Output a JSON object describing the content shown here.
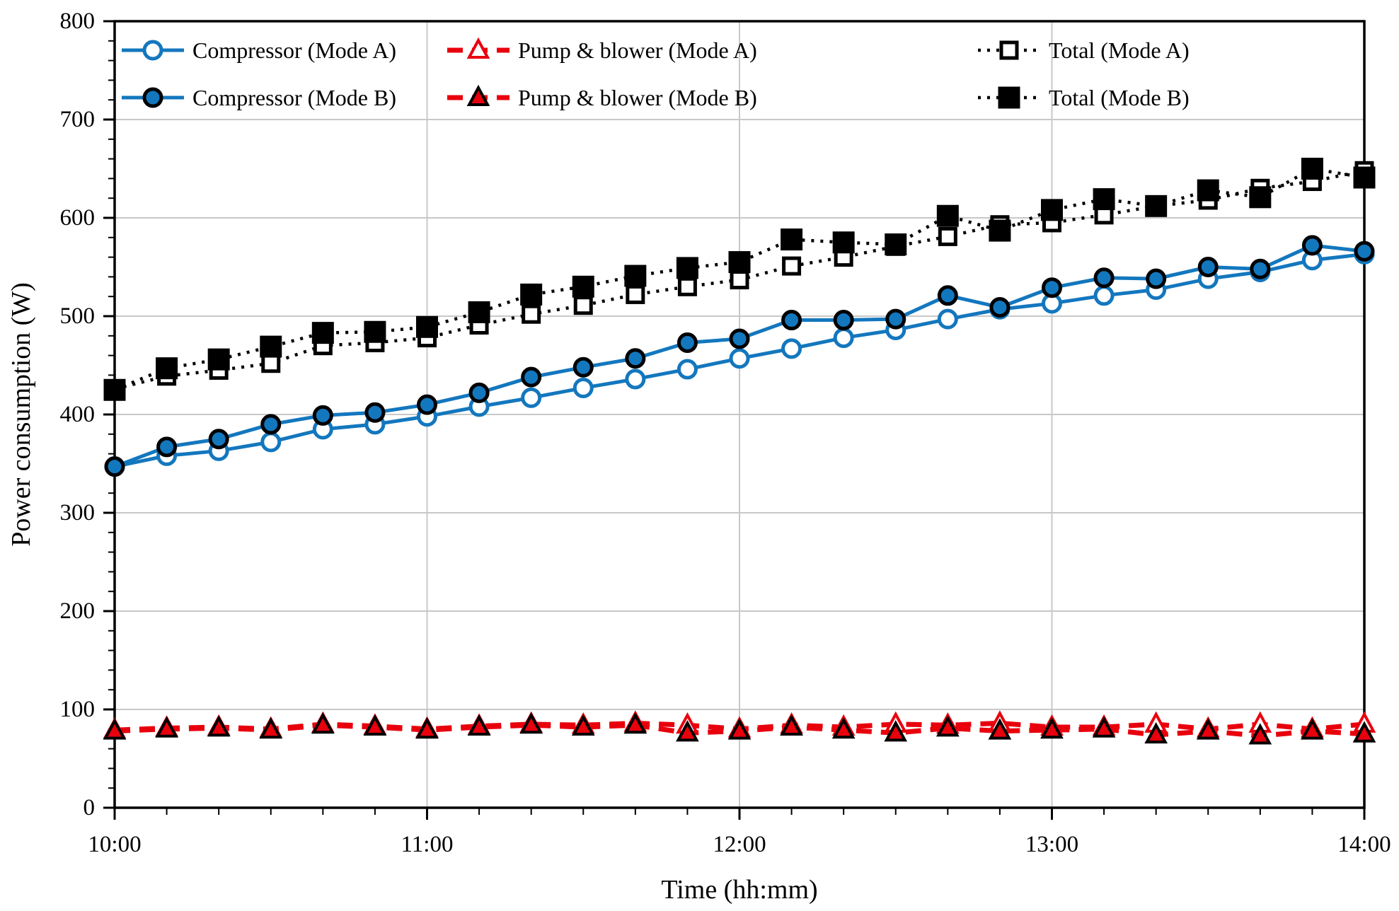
{
  "chart_data": {
    "type": "line",
    "title": "",
    "xlabel": "Time (hh:mm)",
    "ylabel": "Power consumption (W)",
    "ylim": [
      0,
      800
    ],
    "ytick_step": 100,
    "ytick_minor_step": 20,
    "ytick_labels": [
      "0",
      "100",
      "200",
      "300",
      "400",
      "500",
      "600",
      "700",
      "800"
    ],
    "xtick_labels": [
      "10:00",
      "11:00",
      "12:00",
      "13:00",
      "14:00"
    ],
    "x_minor_per_hour": 6,
    "grid": {
      "horizontal": true,
      "vertical_at_hours": true,
      "color": "#c8c8c8"
    },
    "legend_position": "top-inside",
    "x": [
      "10:00",
      "10:10",
      "10:20",
      "10:30",
      "10:40",
      "10:50",
      "11:00",
      "11:10",
      "11:20",
      "11:30",
      "11:40",
      "11:50",
      "12:00",
      "12:10",
      "12:20",
      "12:30",
      "12:40",
      "12:50",
      "13:00",
      "13:10",
      "13:20",
      "13:30",
      "13:40",
      "13:50",
      "14:00"
    ],
    "series": [
      {
        "id": "compressor-mode-a",
        "name": "Compressor (Mode A)",
        "color": "#1377be",
        "line": "solid",
        "marker": "circle-open",
        "marker_fill": "#ffffff",
        "marker_stroke": "#1377be",
        "values": [
          347,
          358,
          363,
          372,
          385,
          390,
          398,
          408,
          417,
          427,
          436,
          446,
          457,
          467,
          478,
          486,
          497,
          507,
          513,
          521,
          527,
          538,
          545,
          557,
          563
        ]
      },
      {
        "id": "compressor-mode-b",
        "name": "Compressor (Mode B)",
        "color": "#1377be",
        "line": "solid",
        "marker": "circle-filled",
        "marker_fill": "#1377be",
        "marker_stroke": "#000000",
        "values": [
          347,
          367,
          375,
          390,
          399,
          402,
          410,
          422,
          438,
          448,
          457,
          473,
          477,
          496,
          496,
          497,
          521,
          509,
          529,
          539,
          538,
          550,
          548,
          572,
          566
        ]
      },
      {
        "id": "pump-blower-mode-a",
        "name": "Pump & blower (Mode A)",
        "color": "#e8000d",
        "line": "dashed",
        "marker": "triangle-open",
        "marker_fill": "#ffffff",
        "marker_stroke": "#e8000d",
        "values": [
          79,
          81,
          82,
          80,
          85,
          83,
          80,
          83,
          85,
          84,
          86,
          84,
          80,
          84,
          82,
          85,
          84,
          86,
          82,
          82,
          85,
          80,
          85,
          80,
          85
        ]
      },
      {
        "id": "pump-blower-mode-b",
        "name": "Pump & blower (Mode B)",
        "color": "#e8000d",
        "line": "dashed",
        "marker": "triangle-filled",
        "marker_fill": "#e8000d",
        "marker_stroke": "#000000",
        "values": [
          78,
          80,
          81,
          79,
          84,
          82,
          79,
          82,
          84,
          82,
          84,
          76,
          78,
          82,
          79,
          76,
          81,
          78,
          79,
          80,
          74,
          78,
          73,
          78,
          75
        ]
      },
      {
        "id": "total-mode-a",
        "name": "Total (Mode A)",
        "color": "#000000",
        "line": "dotted",
        "marker": "square-open",
        "marker_fill": "#ffffff",
        "marker_stroke": "#000000",
        "values": [
          426,
          439,
          445,
          452,
          470,
          473,
          478,
          491,
          502,
          511,
          522,
          530,
          537,
          551,
          560,
          571,
          581,
          593,
          595,
          603,
          612,
          618,
          630,
          637,
          648
        ]
      },
      {
        "id": "total-mode-b",
        "name": "Total (Mode B)",
        "color": "#000000",
        "line": "dotted",
        "marker": "square-filled",
        "marker_fill": "#000000",
        "marker_stroke": "#000000",
        "values": [
          425,
          447,
          456,
          469,
          483,
          484,
          489,
          504,
          522,
          530,
          541,
          549,
          555,
          578,
          575,
          573,
          602,
          587,
          608,
          619,
          612,
          628,
          621,
          650,
          641
        ]
      }
    ],
    "legend": {
      "rows": [
        [
          "compressor-mode-a",
          "pump-blower-mode-a",
          "total-mode-a"
        ],
        [
          "compressor-mode-b",
          "pump-blower-mode-b",
          "total-mode-b"
        ]
      ]
    }
  }
}
